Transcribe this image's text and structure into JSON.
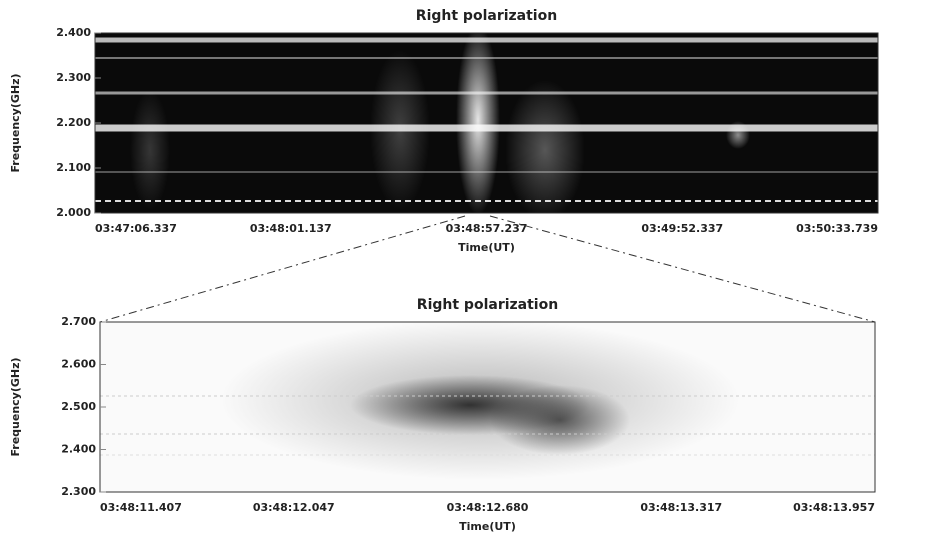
{
  "chart_data": [
    {
      "type": "heatmap",
      "title": "Right polarization",
      "xlabel": "Time(UT)",
      "ylabel": "Frequency(GHz)",
      "colormap": "gray",
      "categories": [
        "03:47:06.337",
        "03:48:01.137",
        "03:48:57.237",
        "03:49:52.337",
        "03:50:33.739"
      ],
      "ylim": [
        2.0,
        2.4
      ],
      "yticks": [
        {
          "value": 2.0,
          "label": "2.000"
        },
        {
          "value": 2.1,
          "label": "2.100"
        },
        {
          "value": 2.2,
          "label": "2.200"
        },
        {
          "value": 2.3,
          "label": "2.300"
        },
        {
          "value": 2.4,
          "label": "2.400"
        }
      ]
    },
    {
      "type": "heatmap",
      "title": "Right polarization",
      "xlabel": "Time(UT)",
      "ylabel": "Frequency(GHz)",
      "colormap": "gray_r",
      "categories": [
        "03:48:11.407",
        "03:48:12.047",
        "03:48:12.680",
        "03:48:13.317",
        "03:48:13.957"
      ],
      "ylim": [
        2.3,
        2.7
      ],
      "yticks": [
        {
          "value": 2.3,
          "label": "2.300"
        },
        {
          "value": 2.4,
          "label": "2.400"
        },
        {
          "value": 2.5,
          "label": "2.500"
        },
        {
          "value": 2.6,
          "label": "2.600"
        },
        {
          "value": 2.7,
          "label": "2.700"
        }
      ]
    }
  ]
}
